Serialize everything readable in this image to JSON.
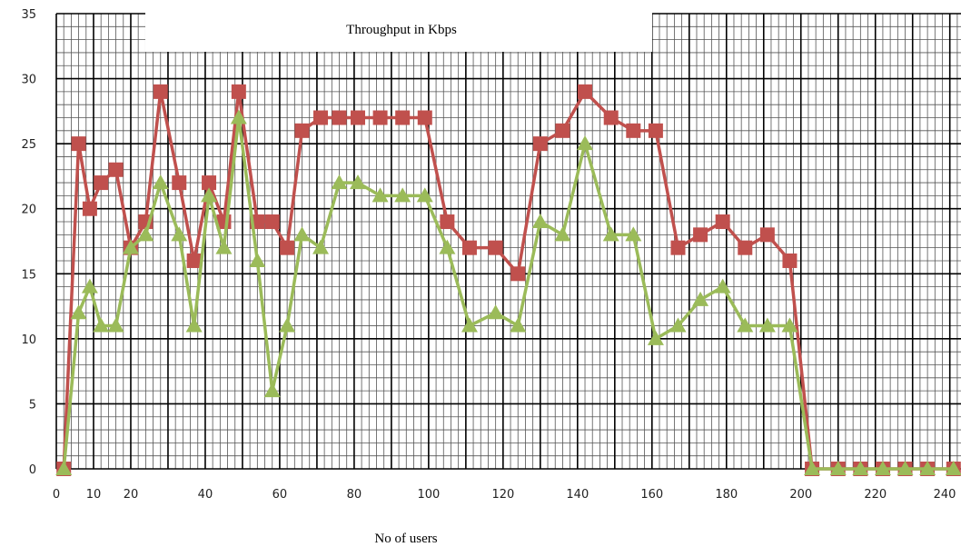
{
  "chart_data": {
    "type": "line",
    "title": "Throughput in Kbps",
    "xlabel": "No of users",
    "ylabel": "",
    "xlim": [
      0,
      243
    ],
    "ylim": [
      0,
      35
    ],
    "x_ticks": [
      0,
      10,
      20,
      40,
      60,
      80,
      100,
      120,
      140,
      160,
      180,
      200,
      220,
      240
    ],
    "y_ticks": [
      0,
      5,
      10,
      15,
      20,
      25,
      30,
      35
    ],
    "grid": true,
    "legend": "none",
    "x": [
      2,
      6,
      9,
      12,
      16,
      20,
      24,
      28,
      33,
      37,
      41,
      45,
      49,
      54,
      58,
      62,
      66,
      71,
      76,
      81,
      87,
      93,
      99,
      105,
      111,
      118,
      124,
      130,
      136,
      142,
      149,
      155,
      161,
      167,
      173,
      179,
      185,
      191,
      197,
      203,
      210,
      216,
      222,
      228,
      234,
      241
    ],
    "series": [
      {
        "color": "#c0504d",
        "marker": "square",
        "values": [
          0,
          25,
          20,
          22,
          23,
          17,
          19,
          29,
          22,
          16,
          22,
          19,
          29,
          19,
          19,
          17,
          26,
          27,
          27,
          27,
          27,
          27,
          27,
          19,
          17,
          17,
          15,
          25,
          26,
          29,
          27,
          26,
          26,
          17,
          18,
          19,
          17,
          18,
          16,
          0,
          0,
          0,
          0,
          0,
          0,
          0
        ]
      },
      {
        "color": "#9bbb59",
        "marker": "triangle",
        "values": [
          0,
          12,
          14,
          11,
          11,
          17,
          18,
          22,
          18,
          11,
          21,
          17,
          27,
          16,
          6,
          11,
          18,
          17,
          22,
          22,
          21,
          21,
          21,
          17,
          11,
          12,
          11,
          19,
          18,
          25,
          18,
          18,
          10,
          11,
          13,
          14,
          11,
          11,
          11,
          0,
          0,
          0,
          0,
          0,
          0,
          0
        ]
      }
    ]
  }
}
